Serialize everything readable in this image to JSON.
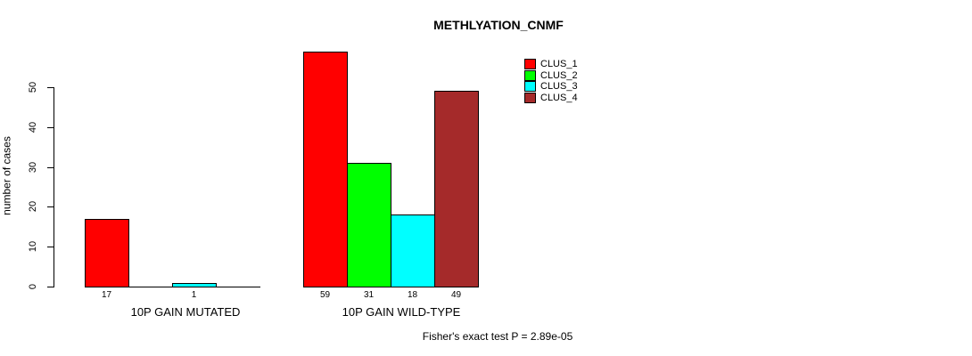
{
  "chart_data": {
    "type": "bar",
    "title": "METHLYATION_CNMF",
    "ylabel": "number of cases",
    "ylim": [
      0,
      50
    ],
    "yticks": [
      0,
      10,
      20,
      30,
      40,
      50
    ],
    "grid": false,
    "legend_position": "top-right",
    "categories": [
      "10P GAIN MUTATED",
      "10P GAIN WILD-TYPE"
    ],
    "series": [
      {
        "name": "CLUS_1",
        "color": "#FF0000",
        "values": [
          17,
          59
        ]
      },
      {
        "name": "CLUS_2",
        "color": "#00FF00",
        "values": [
          0,
          31
        ]
      },
      {
        "name": "CLUS_3",
        "color": "#00FFFF",
        "values": [
          1,
          18
        ]
      },
      {
        "name": "CLUS_4",
        "color": "#A52A2A",
        "values": [
          0,
          49
        ]
      }
    ],
    "bar_value_labels": [
      [
        "17",
        "",
        "1",
        ""
      ],
      [
        "59",
        "31",
        "18",
        "49"
      ]
    ],
    "annotation": "Fisher's exact test P = 2.89e-05"
  },
  "colors": {
    "background": "#FFFFFF",
    "axis": "#000000",
    "bar_border": "#000000",
    "text": "#000000"
  }
}
